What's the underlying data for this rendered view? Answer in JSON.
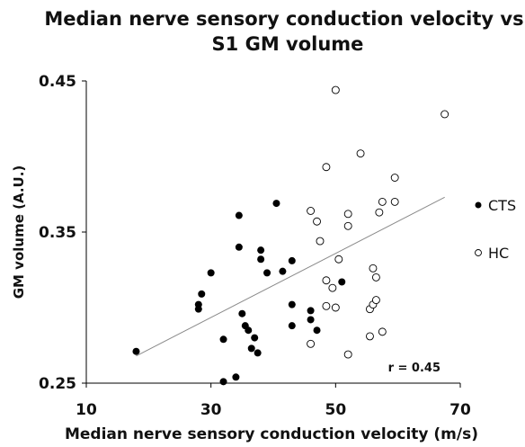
{
  "chart_data": {
    "type": "scatter",
    "title_line1": "Median nerve sensory conduction velocity vs.",
    "title_line2": "S1 GM volume",
    "xlabel": "Median nerve sensory conduction velocity (m/s)",
    "ylabel": "GM volume (A.U.)",
    "xlim": [
      10,
      70
    ],
    "ylim": [
      0.25,
      0.45
    ],
    "xticks": [
      "10",
      "30",
      "50",
      "70"
    ],
    "yticks": [
      "0.25",
      "0.35",
      "0.45"
    ],
    "annotation": "r = 0.45",
    "legend_position": "right",
    "grid": false,
    "trendline": {
      "x": [
        18,
        67.5
      ],
      "y": [
        0.268,
        0.373
      ]
    },
    "series": [
      {
        "name": "CTS",
        "marker": "filled",
        "color": "#000000",
        "points": [
          [
            18,
            0.271
          ],
          [
            28,
            0.299
          ],
          [
            28,
            0.302
          ],
          [
            28.5,
            0.309
          ],
          [
            30,
            0.323
          ],
          [
            32,
            0.279
          ],
          [
            32,
            0.251
          ],
          [
            34,
            0.254
          ],
          [
            34.5,
            0.361
          ],
          [
            34.5,
            0.34
          ],
          [
            35,
            0.296
          ],
          [
            35.5,
            0.288
          ],
          [
            36,
            0.285
          ],
          [
            36.5,
            0.273
          ],
          [
            37,
            0.28
          ],
          [
            37.5,
            0.27
          ],
          [
            38,
            0.338
          ],
          [
            38,
            0.332
          ],
          [
            39,
            0.323
          ],
          [
            40.5,
            0.369
          ],
          [
            41.5,
            0.324
          ],
          [
            43,
            0.331
          ],
          [
            43,
            0.302
          ],
          [
            43,
            0.288
          ],
          [
            46,
            0.298
          ],
          [
            46,
            0.292
          ],
          [
            47,
            0.285
          ],
          [
            51,
            0.317
          ]
        ]
      },
      {
        "name": "HC",
        "marker": "open",
        "color": "#000000",
        "points": [
          [
            48.5,
            0.393
          ],
          [
            50,
            0.444
          ],
          [
            54,
            0.402
          ],
          [
            67.5,
            0.428
          ],
          [
            46,
            0.364
          ],
          [
            47,
            0.357
          ],
          [
            52,
            0.362
          ],
          [
            52,
            0.354
          ],
          [
            57,
            0.363
          ],
          [
            57.5,
            0.37
          ],
          [
            59.5,
            0.37
          ],
          [
            59.5,
            0.386
          ],
          [
            47.5,
            0.344
          ],
          [
            50.5,
            0.332
          ],
          [
            48.5,
            0.318
          ],
          [
            49.5,
            0.313
          ],
          [
            56,
            0.326
          ],
          [
            56.5,
            0.32
          ],
          [
            48.5,
            0.301
          ],
          [
            50,
            0.3
          ],
          [
            55.5,
            0.299
          ],
          [
            56,
            0.302
          ],
          [
            56.5,
            0.305
          ],
          [
            57.5,
            0.284
          ],
          [
            55.5,
            0.281
          ],
          [
            46,
            0.276
          ],
          [
            52,
            0.269
          ]
        ]
      }
    ]
  }
}
